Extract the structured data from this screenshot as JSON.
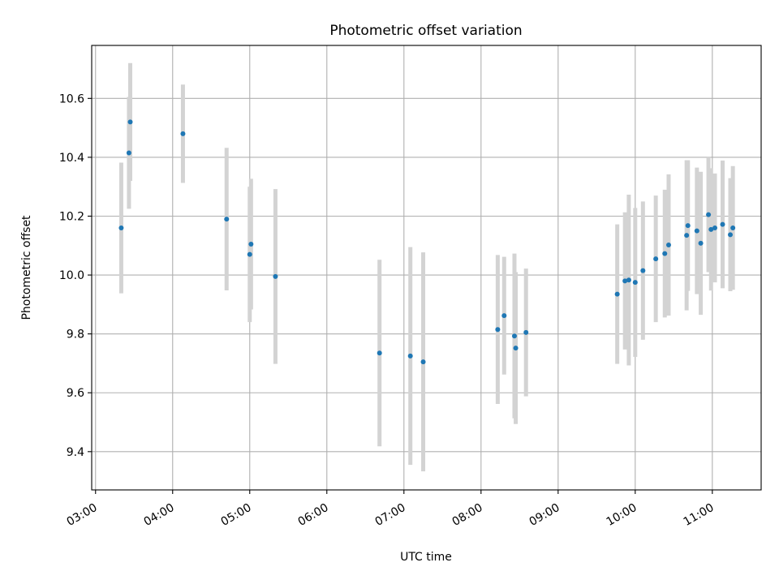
{
  "chart_data": {
    "type": "scatter",
    "title": "Photometric offset variation",
    "xlabel": "UTC time",
    "ylabel": "Photometric offset",
    "xlim": [
      "02:57",
      "11:38"
    ],
    "ylim": [
      9.27,
      10.78
    ],
    "x_ticks": [
      "03:00",
      "04:00",
      "05:00",
      "06:00",
      "07:00",
      "08:00",
      "09:00",
      "10:00",
      "11:00"
    ],
    "y_ticks": [
      9.4,
      9.6,
      9.8,
      10.0,
      10.2,
      10.4,
      10.6
    ],
    "grid": true,
    "colors": {
      "points": "#1f77b4",
      "errorbars": "#d3d3d3"
    },
    "series": [
      {
        "points": [
          {
            "x": "03:20",
            "y": 10.16,
            "err": 0.222
          },
          {
            "x": "03:26",
            "y": 10.415,
            "err": 0.19
          },
          {
            "x": "03:27",
            "y": 10.52,
            "err": 0.2
          },
          {
            "x": "04:08",
            "y": 10.48,
            "err": 0.167
          },
          {
            "x": "04:42",
            "y": 10.19,
            "err": 0.242
          },
          {
            "x": "05:00",
            "y": 10.07,
            "err": 0.23
          },
          {
            "x": "05:01",
            "y": 10.105,
            "err": 0.222
          },
          {
            "x": "05:20",
            "y": 9.995,
            "err": 0.297
          },
          {
            "x": "06:41",
            "y": 9.735,
            "err": 0.317
          },
          {
            "x": "07:05",
            "y": 9.725,
            "err": 0.37
          },
          {
            "x": "07:15",
            "y": 9.705,
            "err": 0.372
          },
          {
            "x": "08:13",
            "y": 9.815,
            "err": 0.253
          },
          {
            "x": "08:18",
            "y": 9.862,
            "err": 0.2
          },
          {
            "x": "08:26",
            "y": 9.793,
            "err": 0.28
          },
          {
            "x": "08:27",
            "y": 9.752,
            "err": 0.258
          },
          {
            "x": "08:35",
            "y": 9.805,
            "err": 0.217
          },
          {
            "x": "09:46",
            "y": 9.935,
            "err": 0.237
          },
          {
            "x": "09:52",
            "y": 9.98,
            "err": 0.233
          },
          {
            "x": "09:55",
            "y": 9.983,
            "err": 0.29
          },
          {
            "x": "10:00",
            "y": 9.975,
            "err": 0.253
          },
          {
            "x": "10:06",
            "y": 10.015,
            "err": 0.235
          },
          {
            "x": "10:16",
            "y": 10.055,
            "err": 0.215
          },
          {
            "x": "10:23",
            "y": 10.073,
            "err": 0.217
          },
          {
            "x": "10:26",
            "y": 10.102,
            "err": 0.24
          },
          {
            "x": "10:40",
            "y": 10.135,
            "err": 0.255
          },
          {
            "x": "10:41",
            "y": 10.168,
            "err": 0.222
          },
          {
            "x": "10:48",
            "y": 10.15,
            "err": 0.215
          },
          {
            "x": "10:51",
            "y": 10.108,
            "err": 0.243
          },
          {
            "x": "10:57",
            "y": 10.205,
            "err": 0.195
          },
          {
            "x": "10:59",
            "y": 10.155,
            "err": 0.208
          },
          {
            "x": "11:02",
            "y": 10.16,
            "err": 0.185
          },
          {
            "x": "11:08",
            "y": 10.172,
            "err": 0.217
          },
          {
            "x": "11:14",
            "y": 10.137,
            "err": 0.192
          },
          {
            "x": "11:16",
            "y": 10.16,
            "err": 0.21
          }
        ]
      }
    ]
  }
}
